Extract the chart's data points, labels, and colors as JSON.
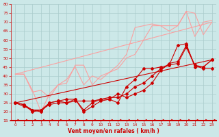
{
  "background_color": "#cce8e8",
  "grid_color": "#aacccc",
  "axis_color": "#cc0000",
  "xlabel": "Vent moyen/en rafales ( km/h )",
  "xlim": [
    -0.5,
    23.5
  ],
  "ylim": [
    15,
    80
  ],
  "yticks": [
    15,
    20,
    25,
    30,
    35,
    40,
    45,
    50,
    55,
    60,
    65,
    70,
    75,
    80
  ],
  "xticks": [
    0,
    1,
    2,
    3,
    4,
    5,
    6,
    7,
    8,
    9,
    10,
    11,
    12,
    13,
    14,
    15,
    16,
    17,
    18,
    19,
    20,
    21,
    22,
    23
  ],
  "dark_lines": [
    {
      "x": [
        0,
        1,
        2,
        3,
        4,
        5,
        6,
        7,
        8,
        9,
        10,
        11,
        12,
        13,
        14,
        15,
        16,
        17,
        18,
        19,
        20,
        21,
        22,
        23
      ],
      "y": [
        25,
        23,
        21,
        20,
        25,
        26,
        25,
        27,
        20,
        23,
        26,
        27,
        25,
        34,
        38,
        44,
        44,
        45,
        46,
        57,
        58,
        45,
        45,
        49
      ]
    },
    {
      "x": [
        0,
        1,
        2,
        3,
        4,
        5,
        6,
        7,
        8,
        9,
        10,
        11,
        12,
        13,
        14,
        15,
        16,
        17,
        18,
        19,
        20,
        21,
        22,
        23
      ],
      "y": [
        25,
        24,
        20,
        21,
        24,
        25,
        25,
        26,
        26,
        26,
        27,
        27,
        30,
        28,
        30,
        32,
        36,
        43,
        47,
        48,
        57,
        46,
        44,
        44
      ]
    },
    {
      "x": [
        0,
        1,
        2,
        3,
        4,
        5,
        6,
        7,
        8,
        9,
        10,
        11,
        12,
        13,
        14,
        15,
        16,
        17,
        18,
        19,
        20,
        21,
        22,
        23
      ],
      "y": [
        25,
        24,
        21,
        21,
        25,
        26,
        27,
        27,
        21,
        25,
        27,
        28,
        28,
        30,
        34,
        36,
        40,
        44,
        46,
        47,
        56,
        46,
        45,
        49
      ]
    },
    {
      "x": [
        0,
        23
      ],
      "y": [
        25,
        49
      ]
    }
  ],
  "light_lines": [
    {
      "x": [
        0,
        1,
        2,
        3,
        4,
        5,
        6,
        7,
        8,
        9,
        10,
        11,
        12,
        13,
        14,
        15,
        16,
        17,
        18,
        19,
        20,
        21,
        22,
        23
      ],
      "y": [
        41,
        41,
        31,
        32,
        28,
        35,
        38,
        45,
        35,
        40,
        38,
        42,
        44,
        50,
        52,
        60,
        68,
        68,
        68,
        68,
        76,
        75,
        63,
        70
      ]
    },
    {
      "x": [
        0,
        1,
        2,
        3,
        4,
        5,
        6,
        7,
        8,
        9,
        10,
        11,
        12,
        13,
        14,
        15,
        16,
        17,
        18,
        19,
        20,
        21,
        22,
        23
      ],
      "y": [
        41,
        41,
        32,
        20,
        30,
        35,
        36,
        46,
        46,
        35,
        40,
        42,
        46,
        52,
        67,
        68,
        69,
        68,
        65,
        68,
        76,
        62,
        70,
        71
      ]
    },
    {
      "x": [
        0,
        23
      ],
      "y": [
        41,
        70
      ]
    }
  ],
  "dark_color": "#cc0000",
  "light_color": "#ff9999",
  "arrow_color": "#cc0000"
}
